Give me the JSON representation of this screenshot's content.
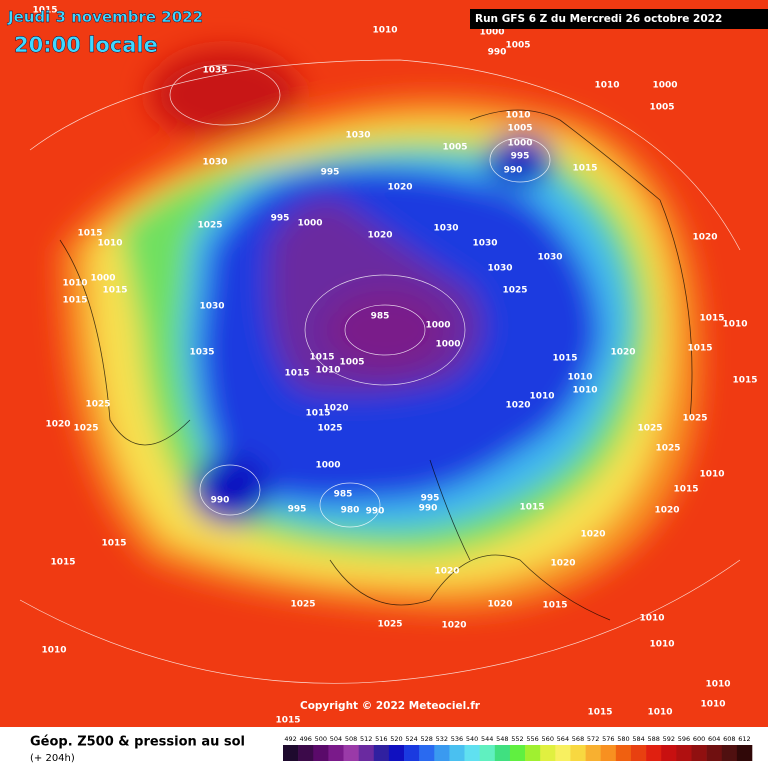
{
  "header": {
    "date": "Jeudi 3 novembre 2022",
    "time": "20:00 locale",
    "run": "Run GFS 6 Z du Mercredi 26 octobre 2022"
  },
  "copyright": "Copyright © 2022 Meteociel.fr",
  "footer": {
    "title": "Géop. Z500 & pression au sol",
    "subtitle": "(+ 204h)"
  },
  "colorbar": {
    "values": [
      492,
      496,
      500,
      504,
      508,
      512,
      516,
      520,
      524,
      528,
      532,
      536,
      540,
      544,
      548,
      552,
      556,
      560,
      564,
      568,
      572,
      576,
      580,
      584,
      588,
      592,
      596,
      600,
      604,
      608,
      612
    ],
    "colors": [
      "#1e0a2e",
      "#3c0a4a",
      "#5a0a6a",
      "#7a1a8a",
      "#9a3aa8",
      "#6a2aa0",
      "#3020a0",
      "#1010c0",
      "#1a3ae0",
      "#2a6af0",
      "#3a9af0",
      "#4ac0f0",
      "#60e0f0",
      "#60f0c0",
      "#40e080",
      "#60f040",
      "#a0f030",
      "#e0f040",
      "#f8f060",
      "#f8d840",
      "#f8b030",
      "#f89020",
      "#f06010",
      "#e84010",
      "#e02010",
      "#c81010",
      "#b01010",
      "#901010",
      "#701010",
      "#501010",
      "#300808"
    ]
  },
  "isobar_labels": [
    1015,
    1010,
    1000,
    1005,
    990,
    1035,
    1010,
    1000,
    1005,
    1010,
    1005,
    1030,
    1000,
    1005,
    995,
    1030,
    990,
    1015,
    995,
    1020,
    995,
    1000,
    1025,
    1030,
    1020,
    1015,
    1010,
    1030,
    1030,
    1020,
    1030,
    1010,
    1000,
    1015,
    1025,
    1015,
    1030,
    985,
    1015,
    1010,
    1000,
    1000,
    1035,
    1015,
    1005,
    1015,
    1020,
    1015,
    1010,
    1015,
    1010,
    1015,
    1010,
    1010,
    1025,
    1020,
    1020,
    1015,
    1025,
    1020,
    1025,
    1025,
    1025,
    1025,
    1000,
    1010,
    985,
    995,
    1015,
    990,
    995,
    980,
    990,
    990,
    1015,
    1020,
    1015,
    1020,
    1015,
    1020,
    1020,
    1025,
    1020,
    1015,
    1010,
    1025,
    1020,
    1010,
    1010,
    1010,
    1010,
    1015,
    1010,
    1015
  ]
}
